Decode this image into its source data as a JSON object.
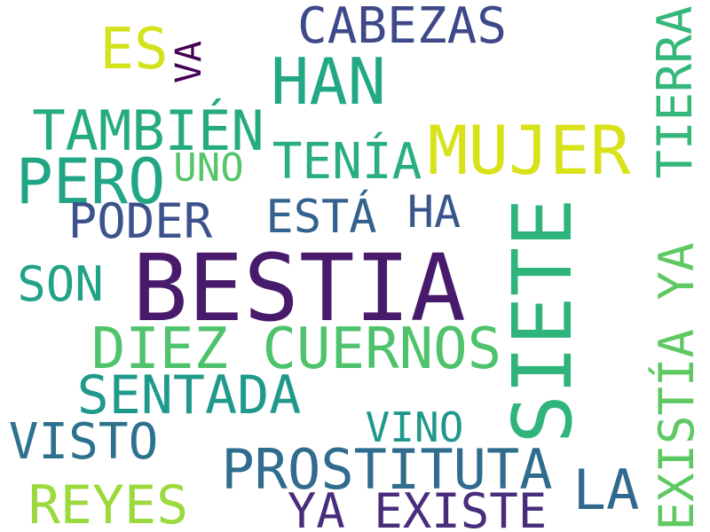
{
  "words": [
    {
      "text": "BESTIA",
      "color": "#481a6c",
      "vertical": false
    },
    {
      "text": "SIETE",
      "color": "#2fb47c",
      "vertical": true
    },
    {
      "text": "MUJER",
      "color": "#d8e219",
      "vertical": false
    },
    {
      "text": "DIEZ CUERNOS",
      "color": "#4ec36b",
      "vertical": false
    },
    {
      "text": "HAN",
      "color": "#22a884",
      "vertical": false
    },
    {
      "text": "PERO",
      "color": "#21a585",
      "vertical": false
    },
    {
      "text": "TAMBIÉN",
      "color": "#25ab82",
      "vertical": false
    },
    {
      "text": "PROSTITUTA",
      "color": "#2f6c8e",
      "vertical": false
    },
    {
      "text": "SENTADA",
      "color": "#1f9a8a",
      "vertical": false
    },
    {
      "text": "REYES",
      "color": "#9bd93c",
      "vertical": false
    },
    {
      "text": "YA EXISTE",
      "color": "#472d7b",
      "vertical": false
    },
    {
      "text": "CABEZAS",
      "color": "#3e4989",
      "vertical": false
    },
    {
      "text": "ES",
      "color": "#d2e21b",
      "vertical": false
    },
    {
      "text": "EXISTÍA YA",
      "color": "#5ec962",
      "vertical": true
    },
    {
      "text": "TIERRA",
      "color": "#35b779",
      "vertical": true
    },
    {
      "text": "TENÍA",
      "color": "#29af7f",
      "vertical": false
    },
    {
      "text": "PODER",
      "color": "#3b528b",
      "vertical": false
    },
    {
      "text": "ESTÁ",
      "color": "#33638d",
      "vertical": false
    },
    {
      "text": "VISTO",
      "color": "#2c728e",
      "vertical": false
    },
    {
      "text": "LA",
      "color": "#31688e",
      "vertical": false
    },
    {
      "text": "SON",
      "color": "#20a386",
      "vertical": false
    },
    {
      "text": "HA",
      "color": "#39568c",
      "vertical": false
    },
    {
      "text": "VINO",
      "color": "#1f988b",
      "vertical": false
    },
    {
      "text": "UNO",
      "color": "#54c568",
      "vertical": false
    },
    {
      "text": "VA",
      "color": "#440154",
      "vertical": true
    }
  ]
}
